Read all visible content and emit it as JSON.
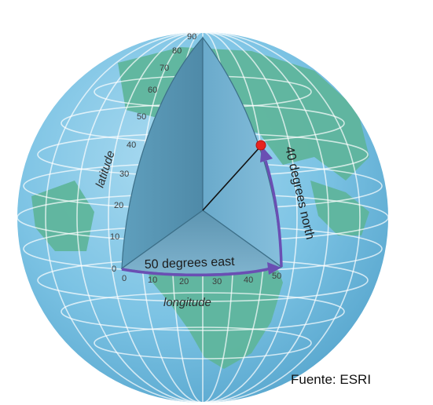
{
  "diagram": {
    "latitude_label": "latitude",
    "longitude_label": "longitude",
    "north_label": "40 degrees north",
    "east_label": "50 degrees east",
    "latitude_ticks": [
      "0",
      "10",
      "20",
      "30",
      "40",
      "50",
      "60",
      "70",
      "80",
      "90"
    ],
    "longitude_ticks": [
      "0",
      "10",
      "20",
      "30",
      "40",
      "50"
    ],
    "point": {
      "latitude": 40,
      "longitude": 50
    },
    "colors": {
      "ocean": "#7cc3e4",
      "land": "#5fb59c",
      "cutaway": "#5b97b4",
      "arrow": "#6a4fb3",
      "point": "#e8241f"
    }
  },
  "credit": "Fuente: ESRI"
}
